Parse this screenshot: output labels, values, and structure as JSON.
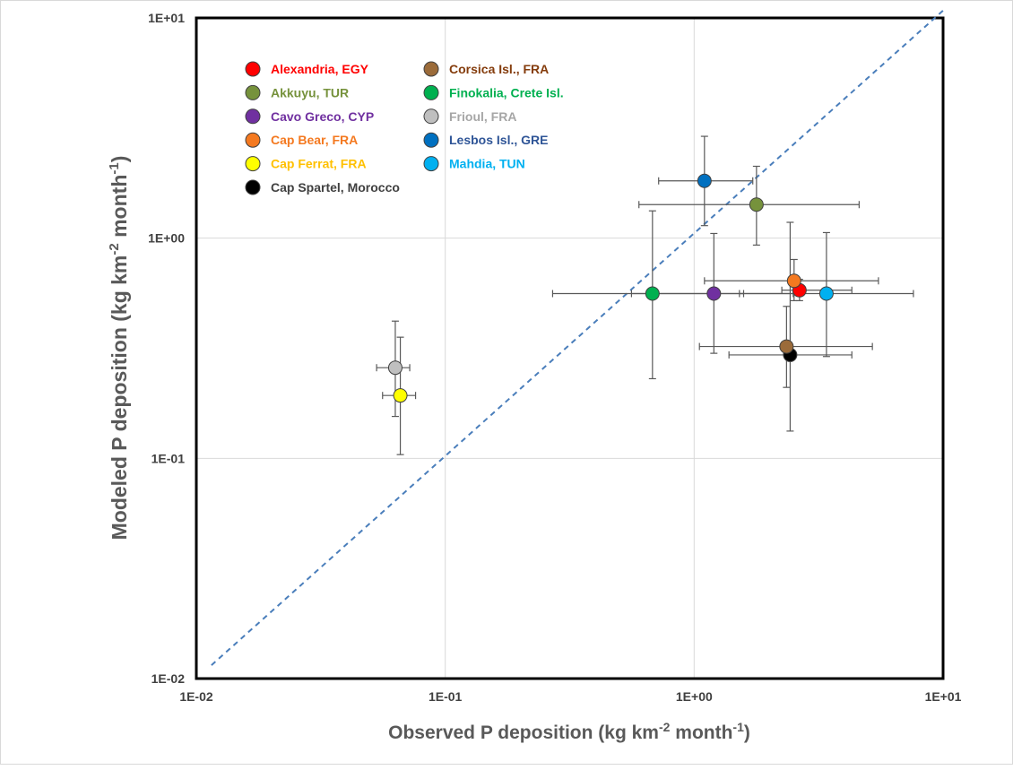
{
  "chart_data": {
    "type": "scatter",
    "xscale": "log",
    "yscale": "log",
    "xlim": [
      0.01,
      10
    ],
    "ylim": [
      0.01,
      10
    ],
    "grid": true,
    "legend_placement": "top-left",
    "x_ticks": [
      "1E-02",
      "1E-01",
      "1E+00",
      "1E+01"
    ],
    "y_ticks": [
      "1E-02",
      "1E-01",
      "1E+00",
      "1E+01"
    ],
    "xlabel": {
      "main": "Observed P deposition (kg km",
      "sup1": "-2",
      "mid": " month",
      "sup2": "-1",
      "end": ")"
    },
    "ylabel": {
      "main": "Modeled P deposition (kg km",
      "sup1": "-2",
      "mid": " month",
      "sup2": "-1",
      "end": ")"
    },
    "reference_line": {
      "style": "dashed",
      "color": "#4a7ebb",
      "x": [
        0.0115,
        10
      ],
      "y": [
        0.0115,
        10.8
      ]
    },
    "series": [
      {
        "name": "Alexandria, EGY",
        "color": "#ff0000",
        "x": 2.65,
        "y": 0.58,
        "xerr": [
          2.25,
          4.3
        ],
        "yerr": [
          0.52,
          0.65
        ]
      },
      {
        "name": "Akkuyu, TUR",
        "color": "#76923c",
        "x": 1.78,
        "y": 1.42,
        "xerr": [
          0.6,
          4.6
        ],
        "yerr": [
          0.93,
          2.12
        ]
      },
      {
        "name": "Cavo Greco, CYP",
        "color": "#7030a0",
        "x": 1.2,
        "y": 0.56,
        "xerr": [
          0.56,
          2.5
        ],
        "yerr": [
          0.3,
          1.05
        ]
      },
      {
        "name": "Cap Bear, FRA",
        "color": "#f47920",
        "x": 2.52,
        "y": 0.64,
        "xerr": [
          1.1,
          5.5
        ],
        "yerr": [
          0.52,
          0.8
        ]
      },
      {
        "name": "Cap Ferrat, FRA",
        "color": "#ffff00",
        "x": 0.066,
        "y": 0.193,
        "xerr": [
          0.056,
          0.076
        ],
        "yerr": [
          0.104,
          0.355
        ]
      },
      {
        "name": "Cap Spartel, Morocco",
        "color": "#000000",
        "x": 2.43,
        "y": 0.295,
        "xerr": [
          1.38,
          4.3
        ],
        "yerr": [
          0.133,
          1.18
        ]
      },
      {
        "name": "Corsica Isl., FRA",
        "color": "#9b6b3a",
        "x": 2.35,
        "y": 0.322,
        "xerr": [
          1.05,
          5.2
        ],
        "yerr": [
          0.21,
          0.49
        ]
      },
      {
        "name": "Finokalia, Crete Isl.",
        "color": "#00b050",
        "x": 0.68,
        "y": 0.56,
        "xerr": [
          0.27,
          1.58
        ],
        "yerr": [
          0.23,
          1.33
        ]
      },
      {
        "name": "Frioul, FRA",
        "color": "#bfbfbf",
        "x": 0.063,
        "y": 0.258,
        "xerr": [
          0.053,
          0.072
        ],
        "yerr": [
          0.155,
          0.42
        ]
      },
      {
        "name": "Lesbos Isl., GRE",
        "color": "#0070c0",
        "x": 1.1,
        "y": 1.82,
        "xerr": [
          0.72,
          1.72
        ],
        "yerr": [
          1.14,
          2.9
        ]
      },
      {
        "name": "Mahdia, TUN",
        "color": "#00b0f0",
        "x": 3.4,
        "y": 0.56,
        "xerr": [
          1.52,
          7.6
        ],
        "yerr": [
          0.29,
          1.06
        ]
      }
    ],
    "legend_columns": [
      [
        "Alexandria, EGY",
        "Akkuyu, TUR",
        "Cavo Greco, CYP",
        "Cap Bear, FRA",
        "Cap Ferrat, FRA",
        "Cap Spartel, Morocco"
      ],
      [
        "Corsica Isl., FRA",
        "Finokalia, Crete Isl.",
        "Frioul, FRA",
        "Lesbos Isl., GRE",
        "Mahdia, TUN"
      ]
    ],
    "legend_text_colors": {
      "Alexandria, EGY": "#ff0000",
      "Akkuyu, TUR": "#76923c",
      "Cavo Greco, CYP": "#7030a0",
      "Cap Bear, FRA": "#f47920",
      "Cap Ferrat, FRA": "#ffc000",
      "Cap Spartel, Morocco": "#404040",
      "Corsica Isl., FRA": "#843c0c",
      "Finokalia, Crete Isl.": "#00b050",
      "Frioul, FRA": "#a6a6a6",
      "Lesbos Isl., GRE": "#2f5597",
      "Mahdia, TUN": "#00b0f0"
    }
  }
}
